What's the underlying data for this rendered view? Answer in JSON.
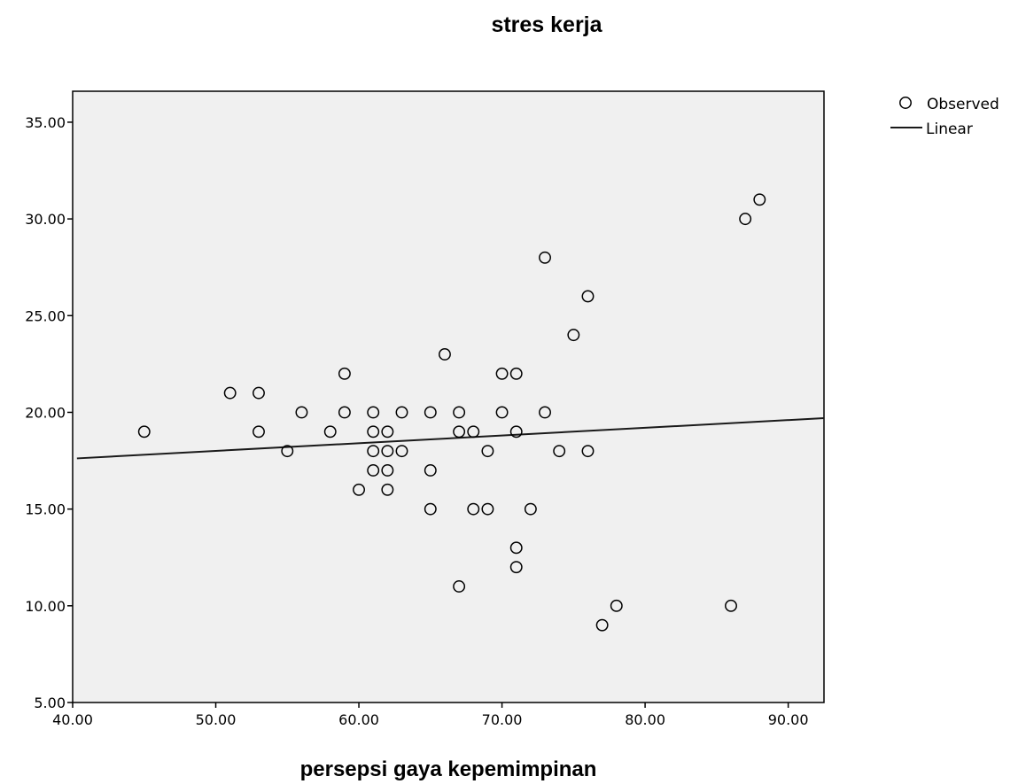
{
  "chart_data": {
    "type": "scatter",
    "title": "stres kerja",
    "xlabel": "persepsi gaya kepemimpinan",
    "ylabel": "",
    "xlim": [
      40,
      92.5
    ],
    "ylim": [
      5,
      36.6
    ],
    "x_ticks": [
      40,
      50,
      60,
      70,
      80,
      90
    ],
    "x_tick_labels": [
      "40.00",
      "50.00",
      "60.00",
      "70.00",
      "80.00",
      "90.00"
    ],
    "y_ticks": [
      5,
      10,
      15,
      20,
      25,
      30,
      35
    ],
    "y_tick_labels": [
      "5.00",
      "10.00",
      "15.00",
      "20.00",
      "25.00",
      "30.00",
      "35.00"
    ],
    "grid": false,
    "legend": {
      "placement": "top-right-outside",
      "entries": [
        {
          "label": "Observed",
          "marker": "circle"
        },
        {
          "label": "Linear",
          "marker": "line"
        }
      ]
    },
    "series": [
      {
        "name": "Observed",
        "points": [
          [
            45,
            19
          ],
          [
            51,
            21
          ],
          [
            53,
            21
          ],
          [
            53,
            19
          ],
          [
            55,
            18
          ],
          [
            56,
            20
          ],
          [
            58,
            19
          ],
          [
            59,
            22
          ],
          [
            59,
            20
          ],
          [
            60,
            16
          ],
          [
            61,
            20
          ],
          [
            61,
            19
          ],
          [
            61,
            18
          ],
          [
            61,
            17
          ],
          [
            62,
            19
          ],
          [
            62,
            18
          ],
          [
            62,
            17
          ],
          [
            62,
            16
          ],
          [
            63,
            20
          ],
          [
            63,
            18
          ],
          [
            65,
            20
          ],
          [
            65,
            17
          ],
          [
            65,
            15
          ],
          [
            66,
            23
          ],
          [
            67,
            20
          ],
          [
            67,
            19
          ],
          [
            67,
            11
          ],
          [
            68,
            19
          ],
          [
            68,
            15
          ],
          [
            69,
            18
          ],
          [
            69,
            15
          ],
          [
            70,
            22
          ],
          [
            70,
            20
          ],
          [
            71,
            22
          ],
          [
            71,
            19
          ],
          [
            71,
            13
          ],
          [
            71,
            12
          ],
          [
            72,
            15
          ],
          [
            73,
            28
          ],
          [
            73,
            20
          ],
          [
            74,
            18
          ],
          [
            75,
            24
          ],
          [
            76,
            26
          ],
          [
            76,
            18
          ],
          [
            77,
            9
          ],
          [
            78,
            10
          ],
          [
            86,
            10
          ],
          [
            87,
            30
          ],
          [
            88,
            31
          ]
        ]
      },
      {
        "name": "Linear",
        "fit_line": [
          [
            40.3,
            17.62
          ],
          [
            92.5,
            19.7
          ]
        ]
      }
    ]
  },
  "colors": {
    "plot_background": "#f0f0f0",
    "page_background": "#ffffff",
    "marker_stroke": "#000000",
    "fit_line": "#1a1a1a"
  }
}
